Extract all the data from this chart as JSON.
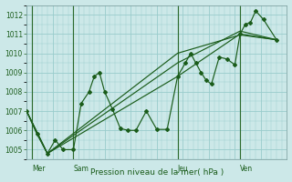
{
  "background_color": "#cce8e8",
  "grid_color": "#99cccc",
  "line_color": "#1a5c1a",
  "marker_color": "#1a5c1a",
  "xlabel": "Pression niveau de la mer( hPa )",
  "ylim": [
    1004.5,
    1012.5
  ],
  "yticks": [
    1005,
    1006,
    1007,
    1008,
    1009,
    1010,
    1011,
    1012
  ],
  "xlim": [
    0,
    100
  ],
  "day_positions": [
    2,
    18,
    58,
    82
  ],
  "day_labels": [
    "Mer",
    "Sam",
    "Jeu",
    "Ven"
  ],
  "vline_positions": [
    2,
    18,
    58,
    82
  ],
  "series_main": [
    [
      0,
      1007.0
    ],
    [
      4,
      1005.8
    ],
    [
      8,
      1004.8
    ],
    [
      11,
      1005.5
    ],
    [
      14,
      1005.0
    ],
    [
      18,
      1005.0
    ],
    [
      21,
      1007.4
    ],
    [
      24,
      1008.0
    ],
    [
      26,
      1008.8
    ],
    [
      28,
      1009.0
    ],
    [
      30,
      1008.0
    ],
    [
      33,
      1007.1
    ],
    [
      36,
      1006.1
    ],
    [
      39,
      1006.0
    ],
    [
      42,
      1006.0
    ],
    [
      46,
      1007.0
    ],
    [
      50,
      1006.05
    ],
    [
      54,
      1006.05
    ],
    [
      58,
      1008.8
    ],
    [
      61,
      1009.5
    ],
    [
      63,
      1010.0
    ],
    [
      65,
      1009.5
    ],
    [
      67,
      1009.0
    ],
    [
      69,
      1008.6
    ],
    [
      71,
      1008.4
    ],
    [
      74,
      1009.8
    ],
    [
      77,
      1009.7
    ],
    [
      80,
      1009.4
    ],
    [
      82,
      1011.0
    ],
    [
      84,
      1011.5
    ],
    [
      86,
      1011.6
    ],
    [
      88,
      1012.2
    ],
    [
      91,
      1011.75
    ],
    [
      96,
      1010.7
    ]
  ],
  "series_lines": [
    [
      [
        0,
        1007.0
      ],
      [
        8,
        1004.8
      ],
      [
        58,
        1008.8
      ],
      [
        82,
        1011.0
      ],
      [
        96,
        1010.7
      ]
    ],
    [
      [
        0,
        1007.0
      ],
      [
        8,
        1004.8
      ],
      [
        58,
        1010.0
      ],
      [
        82,
        1010.95
      ],
      [
        96,
        1010.7
      ]
    ],
    [
      [
        0,
        1007.0
      ],
      [
        8,
        1004.8
      ],
      [
        58,
        1009.5
      ],
      [
        82,
        1011.15
      ],
      [
        96,
        1010.7
      ]
    ]
  ]
}
